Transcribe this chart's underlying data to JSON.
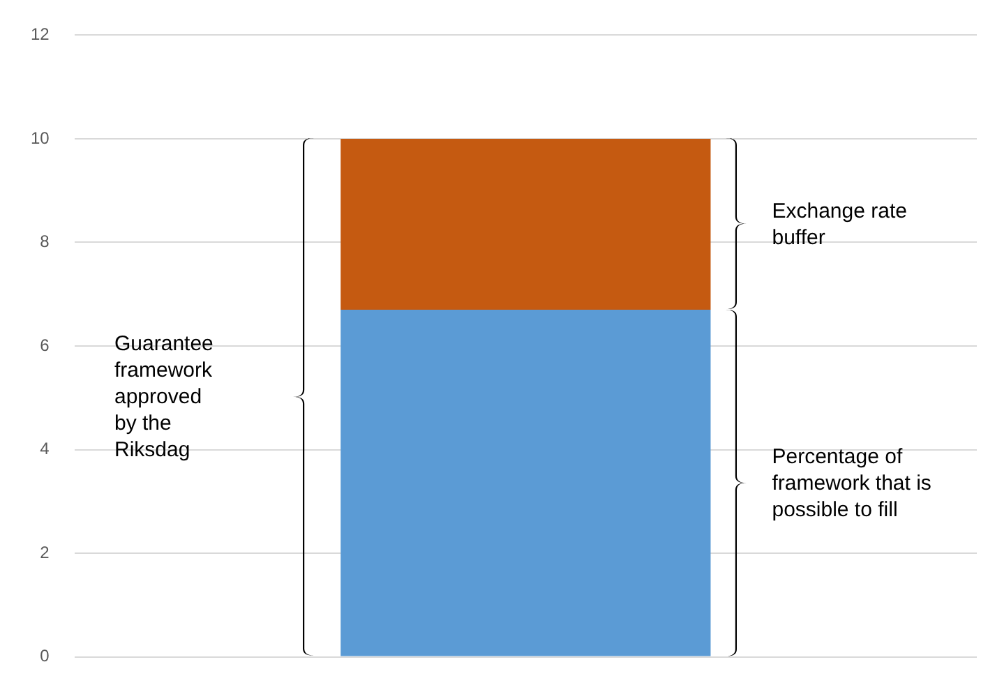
{
  "chart_data": {
    "type": "bar",
    "stacked": true,
    "categories": [
      null
    ],
    "series": [
      {
        "color": "#5b9bd5",
        "values": [
          6.7
        ]
      },
      {
        "color": "#c55a11",
        "values": [
          3.3
        ]
      }
    ],
    "ylim": [
      0,
      12
    ],
    "yticks": [
      0,
      2,
      4,
      6,
      8,
      10,
      12
    ],
    "grid": "y",
    "legend": false,
    "tick_labels": "y",
    "annotations": [
      "Guarantee framework approved by the Riksdag",
      "Exchange rate buffer",
      "Percentage of framework that is possible to fill"
    ]
  }
}
